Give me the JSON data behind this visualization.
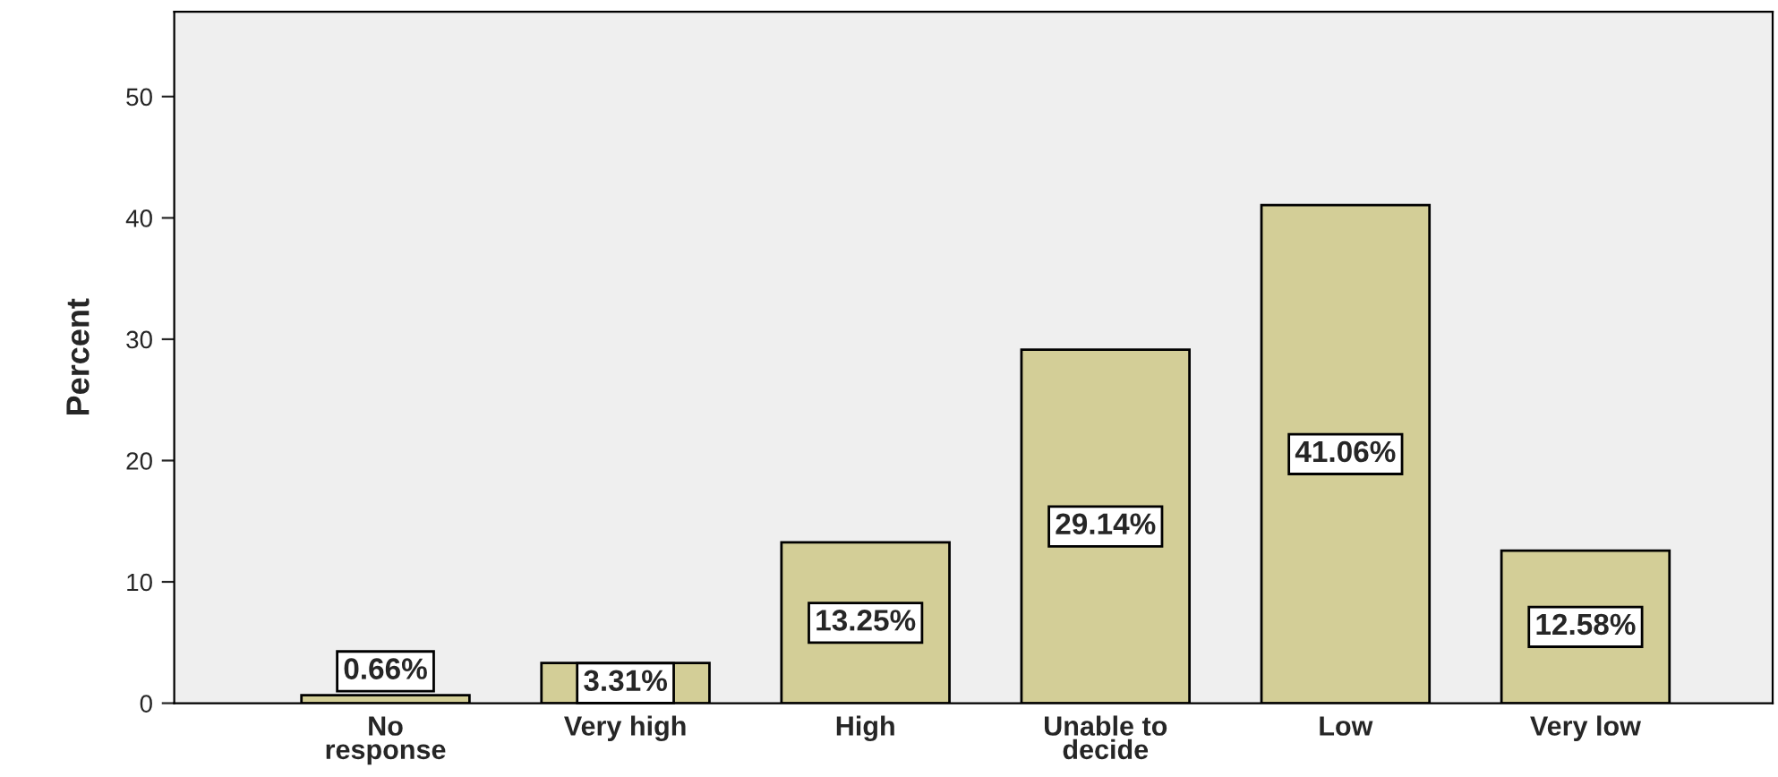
{
  "chart_data": {
    "type": "bar",
    "ylabel": "Percent",
    "categories": [
      "No\nresponse",
      "Very high",
      "High",
      "Unable to\ndecide",
      "Low",
      "Very low"
    ],
    "values": [
      0.66,
      3.31,
      13.25,
      29.14,
      41.06,
      12.58
    ],
    "value_labels": [
      "0.66%",
      "3.31%",
      "13.25%",
      "29.14%",
      "41.06%",
      "12.58%"
    ],
    "color": "#d3ce97",
    "ylim": [
      0,
      57
    ],
    "yticks": [
      0,
      10,
      20,
      30,
      40,
      50
    ],
    "grid": false,
    "legend": false
  }
}
